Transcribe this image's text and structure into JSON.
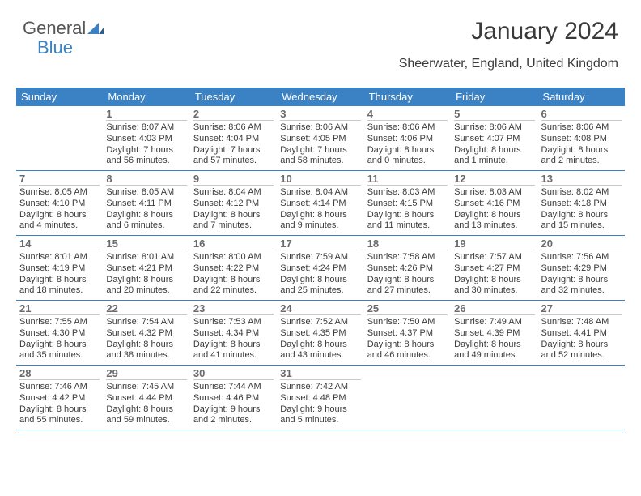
{
  "logo": {
    "part1": "General",
    "part2": "Blue"
  },
  "title": "January 2024",
  "subtitle": "Sheerwater, England, United Kingdom",
  "colors": {
    "accent": "#3b82c4",
    "text": "#3a3a3a",
    "daynum": "#6a6a6a",
    "cell_border": "#c8c8c8",
    "background": "#ffffff"
  },
  "dayHeaders": [
    "Sunday",
    "Monday",
    "Tuesday",
    "Wednesday",
    "Thursday",
    "Friday",
    "Saturday"
  ],
  "weeks": [
    [
      {
        "num": "",
        "info": ""
      },
      {
        "num": "1",
        "info": "Sunrise: 8:07 AM\nSunset: 4:03 PM\nDaylight: 7 hours and 56 minutes."
      },
      {
        "num": "2",
        "info": "Sunrise: 8:06 AM\nSunset: 4:04 PM\nDaylight: 7 hours and 57 minutes."
      },
      {
        "num": "3",
        "info": "Sunrise: 8:06 AM\nSunset: 4:05 PM\nDaylight: 7 hours and 58 minutes."
      },
      {
        "num": "4",
        "info": "Sunrise: 8:06 AM\nSunset: 4:06 PM\nDaylight: 8 hours and 0 minutes."
      },
      {
        "num": "5",
        "info": "Sunrise: 8:06 AM\nSunset: 4:07 PM\nDaylight: 8 hours and 1 minute."
      },
      {
        "num": "6",
        "info": "Sunrise: 8:06 AM\nSunset: 4:08 PM\nDaylight: 8 hours and 2 minutes."
      }
    ],
    [
      {
        "num": "7",
        "info": "Sunrise: 8:05 AM\nSunset: 4:10 PM\nDaylight: 8 hours and 4 minutes."
      },
      {
        "num": "8",
        "info": "Sunrise: 8:05 AM\nSunset: 4:11 PM\nDaylight: 8 hours and 6 minutes."
      },
      {
        "num": "9",
        "info": "Sunrise: 8:04 AM\nSunset: 4:12 PM\nDaylight: 8 hours and 7 minutes."
      },
      {
        "num": "10",
        "info": "Sunrise: 8:04 AM\nSunset: 4:14 PM\nDaylight: 8 hours and 9 minutes."
      },
      {
        "num": "11",
        "info": "Sunrise: 8:03 AM\nSunset: 4:15 PM\nDaylight: 8 hours and 11 minutes."
      },
      {
        "num": "12",
        "info": "Sunrise: 8:03 AM\nSunset: 4:16 PM\nDaylight: 8 hours and 13 minutes."
      },
      {
        "num": "13",
        "info": "Sunrise: 8:02 AM\nSunset: 4:18 PM\nDaylight: 8 hours and 15 minutes."
      }
    ],
    [
      {
        "num": "14",
        "info": "Sunrise: 8:01 AM\nSunset: 4:19 PM\nDaylight: 8 hours and 18 minutes."
      },
      {
        "num": "15",
        "info": "Sunrise: 8:01 AM\nSunset: 4:21 PM\nDaylight: 8 hours and 20 minutes."
      },
      {
        "num": "16",
        "info": "Sunrise: 8:00 AM\nSunset: 4:22 PM\nDaylight: 8 hours and 22 minutes."
      },
      {
        "num": "17",
        "info": "Sunrise: 7:59 AM\nSunset: 4:24 PM\nDaylight: 8 hours and 25 minutes."
      },
      {
        "num": "18",
        "info": "Sunrise: 7:58 AM\nSunset: 4:26 PM\nDaylight: 8 hours and 27 minutes."
      },
      {
        "num": "19",
        "info": "Sunrise: 7:57 AM\nSunset: 4:27 PM\nDaylight: 8 hours and 30 minutes."
      },
      {
        "num": "20",
        "info": "Sunrise: 7:56 AM\nSunset: 4:29 PM\nDaylight: 8 hours and 32 minutes."
      }
    ],
    [
      {
        "num": "21",
        "info": "Sunrise: 7:55 AM\nSunset: 4:30 PM\nDaylight: 8 hours and 35 minutes."
      },
      {
        "num": "22",
        "info": "Sunrise: 7:54 AM\nSunset: 4:32 PM\nDaylight: 8 hours and 38 minutes."
      },
      {
        "num": "23",
        "info": "Sunrise: 7:53 AM\nSunset: 4:34 PM\nDaylight: 8 hours and 41 minutes."
      },
      {
        "num": "24",
        "info": "Sunrise: 7:52 AM\nSunset: 4:35 PM\nDaylight: 8 hours and 43 minutes."
      },
      {
        "num": "25",
        "info": "Sunrise: 7:50 AM\nSunset: 4:37 PM\nDaylight: 8 hours and 46 minutes."
      },
      {
        "num": "26",
        "info": "Sunrise: 7:49 AM\nSunset: 4:39 PM\nDaylight: 8 hours and 49 minutes."
      },
      {
        "num": "27",
        "info": "Sunrise: 7:48 AM\nSunset: 4:41 PM\nDaylight: 8 hours and 52 minutes."
      }
    ],
    [
      {
        "num": "28",
        "info": "Sunrise: 7:46 AM\nSunset: 4:42 PM\nDaylight: 8 hours and 55 minutes."
      },
      {
        "num": "29",
        "info": "Sunrise: 7:45 AM\nSunset: 4:44 PM\nDaylight: 8 hours and 59 minutes."
      },
      {
        "num": "30",
        "info": "Sunrise: 7:44 AM\nSunset: 4:46 PM\nDaylight: 9 hours and 2 minutes."
      },
      {
        "num": "31",
        "info": "Sunrise: 7:42 AM\nSunset: 4:48 PM\nDaylight: 9 hours and 5 minutes."
      },
      {
        "num": "",
        "info": ""
      },
      {
        "num": "",
        "info": ""
      },
      {
        "num": "",
        "info": ""
      }
    ]
  ]
}
